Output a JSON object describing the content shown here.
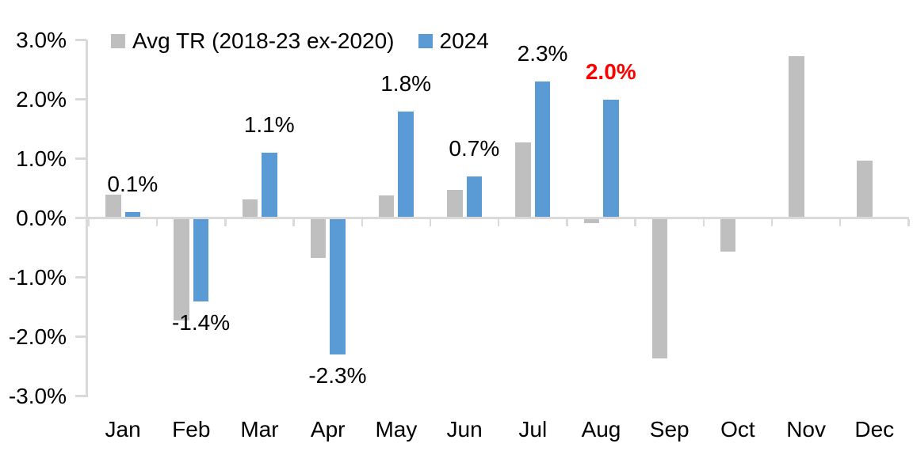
{
  "chart_data": {
    "type": "bar",
    "title": "",
    "categories": [
      "Jan",
      "Feb",
      "Mar",
      "Apr",
      "May",
      "Jun",
      "Jul",
      "Aug",
      "Sep",
      "Oct",
      "Nov",
      "Dec"
    ],
    "series": [
      {
        "name": "Avg TR (2018-23 ex-2020)",
        "color": "#bfbfbf",
        "values": [
          0.4,
          -1.73,
          0.31,
          -0.67,
          0.38,
          0.47,
          1.27,
          -0.08,
          -2.37,
          -0.57,
          2.73,
          0.97
        ]
      },
      {
        "name": "2024",
        "color": "#5b9bd5",
        "values": [
          0.1,
          -1.4,
          1.1,
          -2.3,
          1.8,
          0.7,
          2.3,
          2.0,
          null,
          null,
          null,
          null
        ]
      }
    ],
    "data_labels": [
      {
        "category": "Jan",
        "text": "0.1%",
        "color": "#000000",
        "bold": false
      },
      {
        "category": "Feb",
        "text": "-1.4%",
        "color": "#000000",
        "bold": false
      },
      {
        "category": "Mar",
        "text": "1.1%",
        "color": "#000000",
        "bold": false
      },
      {
        "category": "Apr",
        "text": "-2.3%",
        "color": "#000000",
        "bold": false
      },
      {
        "category": "May",
        "text": "1.8%",
        "color": "#000000",
        "bold": false
      },
      {
        "category": "Jun",
        "text": "0.7%",
        "color": "#000000",
        "bold": false
      },
      {
        "category": "Jul",
        "text": "2.3%",
        "color": "#000000",
        "bold": false
      },
      {
        "category": "Aug",
        "text": "2.0%",
        "color": "#ff0000",
        "bold": true
      }
    ],
    "y_axis": {
      "tick_labels": [
        "3.0%",
        "2.0%",
        "1.0%",
        "0.0%",
        "-1.0%",
        "-2.0%",
        "-3.0%"
      ],
      "min": -3.0,
      "max": 3.0,
      "step": 1.0,
      "unit": "%"
    },
    "x_axis": {
      "label": ""
    },
    "legend": {
      "position": "top",
      "entries": [
        "Avg TR (2018-23 ex-2020)",
        "2024"
      ]
    },
    "grid": false,
    "styles": {
      "axis_color": "#d9d9d9",
      "text_color": "#000000",
      "highlight_color": "#ff0000",
      "background": "#ffffff"
    }
  }
}
